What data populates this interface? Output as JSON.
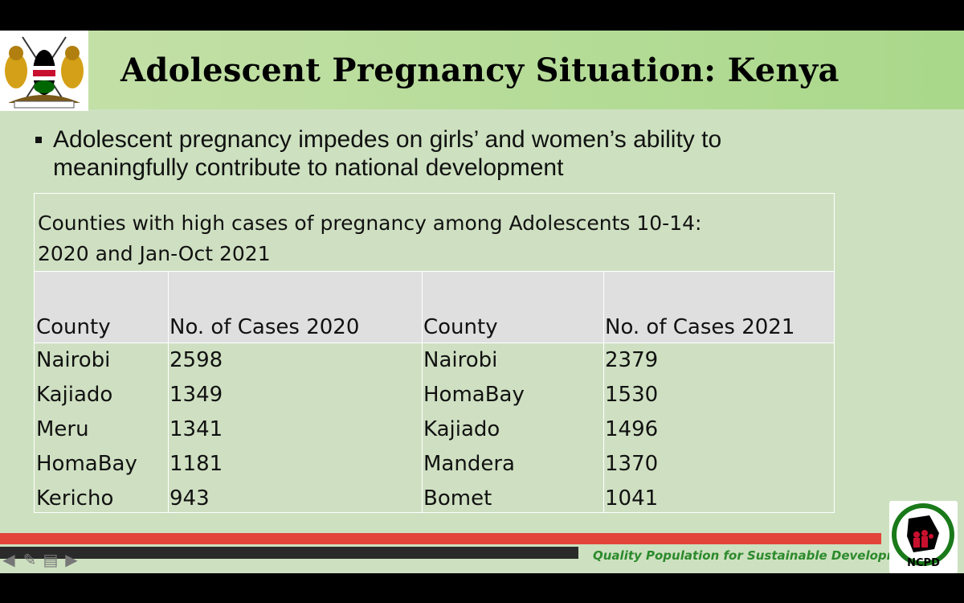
{
  "slide": {
    "title": "Adolescent Pregnancy Situation: Kenya",
    "bullet": "Adolescent pregnancy impedes on girls’ and women’s ability to meaningfully contribute to national development"
  },
  "table": {
    "caption_line1": "Counties with high cases of pregnancy among Adolescents 10-14:",
    "caption_line2": "2020 and Jan-Oct 2021",
    "headers": [
      "County",
      "No. of Cases 2020",
      "County",
      "No. of Cases 2021"
    ],
    "rows": [
      [
        "Nairobi",
        "2598",
        "Nairobi",
        "2379"
      ],
      [
        "Kajiado",
        "1349",
        "HomaBay",
        "1530"
      ],
      [
        "Meru",
        "1341",
        "Kajiado",
        "1496"
      ],
      [
        "HomaBay",
        "1181",
        "Mandera",
        "1370"
      ],
      [
        "Kericho",
        "943",
        "Bomet",
        "1041"
      ]
    ]
  },
  "footer": {
    "tagline": "Quality Population for Sustainable Development",
    "ncpd_label": "NCPD"
  },
  "nav_icons": [
    "arrow-left-icon",
    "pencil-icon",
    "menu-icon",
    "arrow-right-icon"
  ],
  "colors": {
    "slide_bg": "#cde1c0",
    "title_bar": "#b5dc95",
    "footer_red": "#e2443a",
    "tagline_green": "#2c8a2c"
  }
}
